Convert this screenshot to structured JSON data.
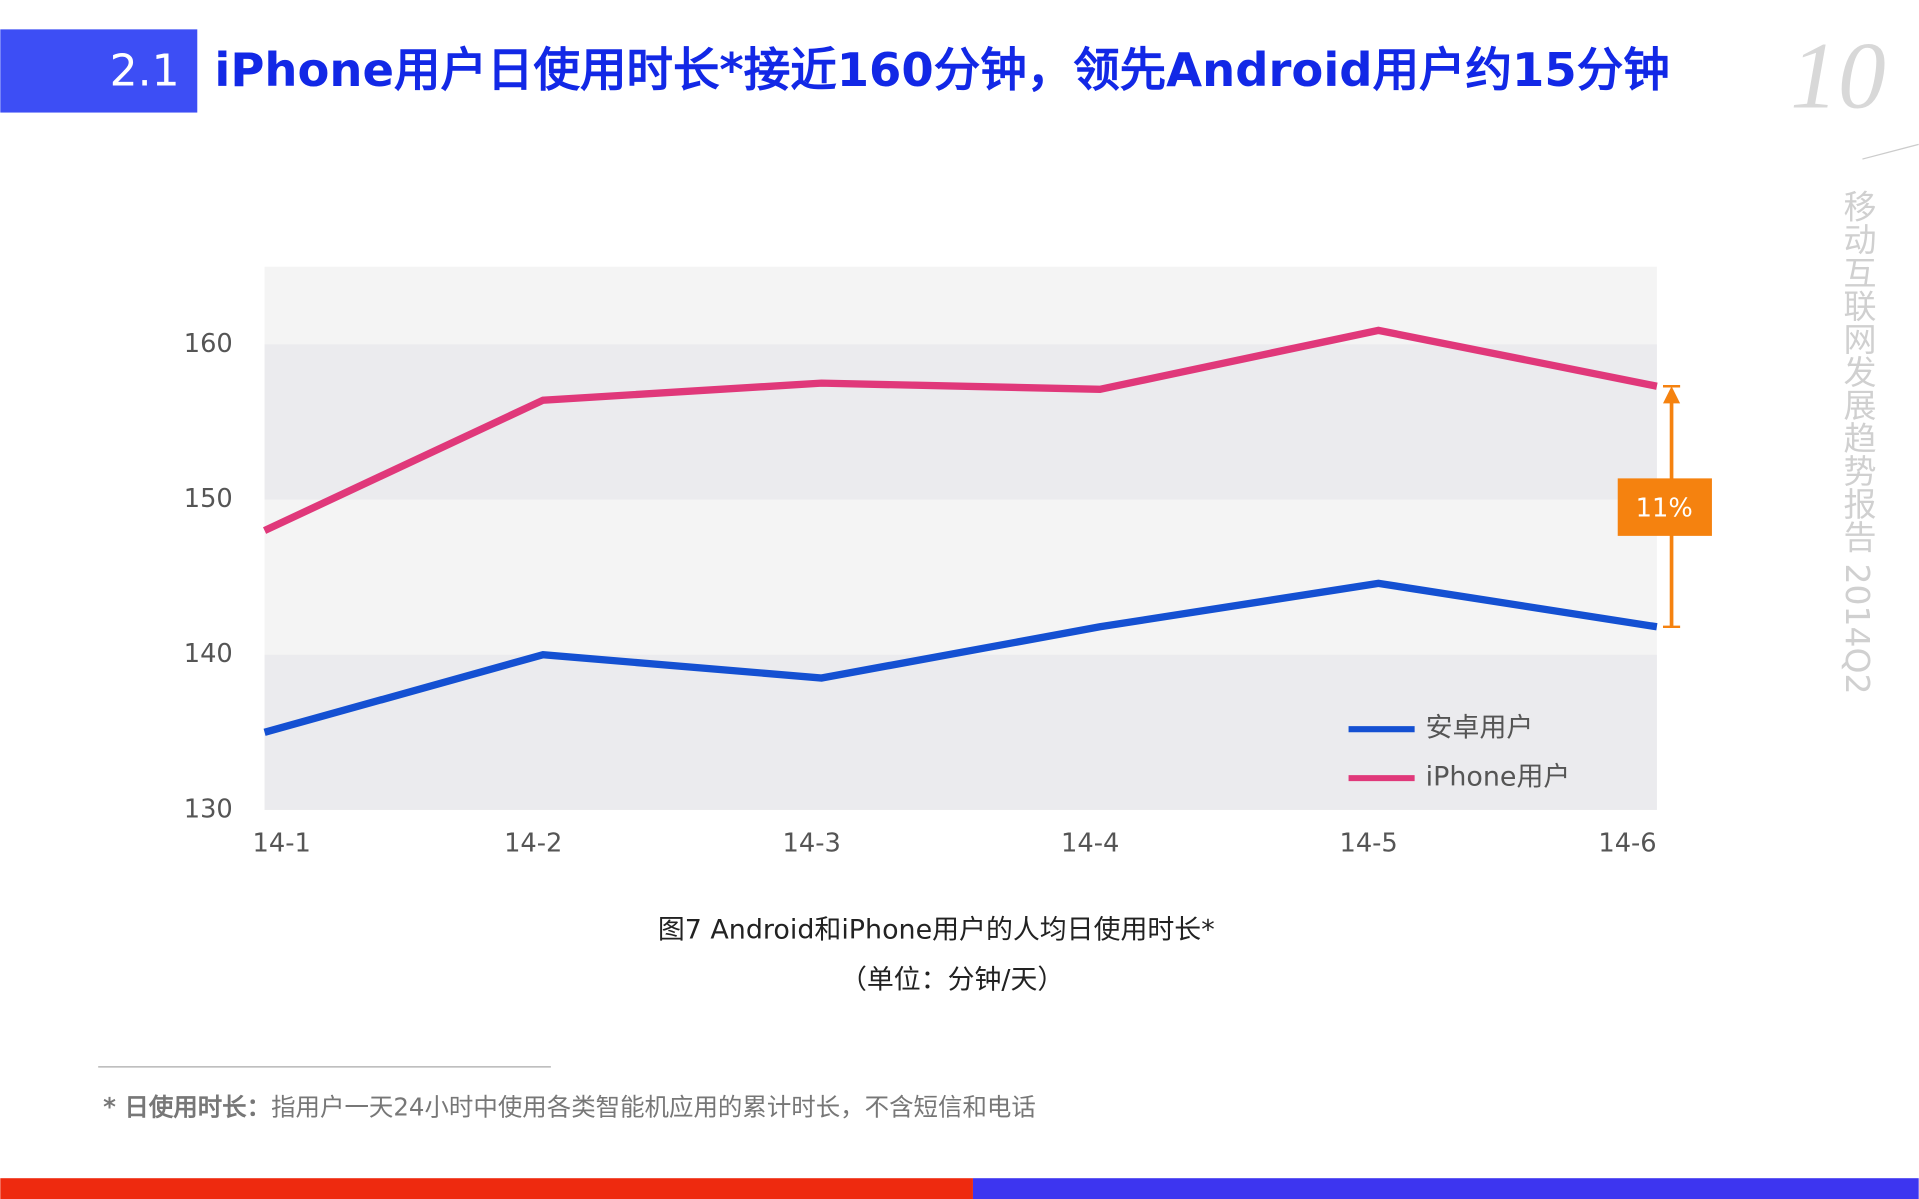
{
  "header": {
    "section": "2.1",
    "title": "iPhone用户日使用时长*接近160分钟，领先Android用户约15分钟",
    "page_number": "10",
    "side_text": "移动互联网发展趋势报告 2014Q2"
  },
  "chart_data": {
    "type": "line",
    "categories": [
      "14-1",
      "14-2",
      "14-3",
      "14-4",
      "14-5",
      "14-6"
    ],
    "series": [
      {
        "name": "安卓用户",
        "color": "#1450d2",
        "values": [
          135,
          140,
          138.5,
          141.8,
          144.6,
          141.8
        ]
      },
      {
        "name": "iPhone用户",
        "color": "#e0387a",
        "values": [
          148,
          156.4,
          157.5,
          157.1,
          160.9,
          157.3
        ]
      }
    ],
    "ylim": [
      130,
      165
    ],
    "yticks": [
      130,
      140,
      150,
      160
    ],
    "annotation": "11%",
    "annotation_color": "#f5820f",
    "caption": [
      "图7 Android和iPhone用户的人均日使用时长*",
      "（单位：分钟/天）"
    ]
  },
  "footnote": {
    "term": "* 日使用时长：",
    "text": "指用户一天24小时中使用各类智能机应用的累计时长，不含短信和电话"
  }
}
